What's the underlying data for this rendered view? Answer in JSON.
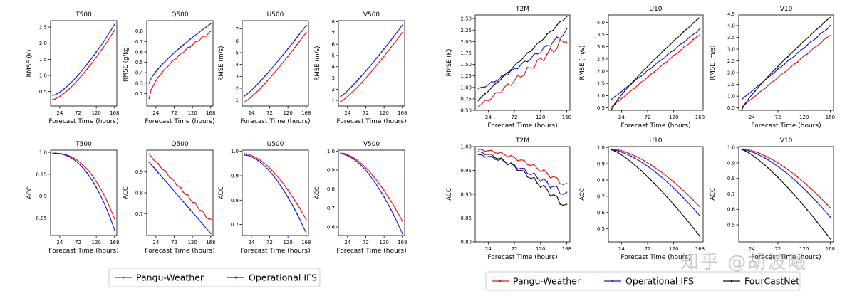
{
  "watermark": "知乎 @胡波曦",
  "colors": {
    "pangu": "#e8141c",
    "ifs": "#1a1adb",
    "fcn": "#111111",
    "axis": "#000000"
  },
  "legend_left": [
    {
      "label": "Pangu-Weather",
      "series": "pangu"
    },
    {
      "label": "Operational IFS",
      "series": "ifs"
    }
  ],
  "legend_right": [
    {
      "label": "Pangu-Weather",
      "series": "pangu"
    },
    {
      "label": "Operational IFS",
      "series": "ifs"
    },
    {
      "label": "FourCastNet",
      "series": "fcn"
    }
  ],
  "chart_data": [
    {
      "type": "line",
      "title": "T500",
      "xlabel": "Forecast Time (hours)",
      "ylabel": "RMSE (K)",
      "x": [
        6,
        168
      ],
      "xticks": [
        24,
        72,
        120,
        168
      ],
      "ylim": [
        0.05,
        2.7
      ],
      "yticks": [
        "0.5",
        "1.0",
        "1.5",
        "2.0",
        "2.5"
      ],
      "series": [
        {
          "name": "Pangu-Weather",
          "key": "pangu",
          "start": 0.25,
          "end": 2.4,
          "shape": 1.4,
          "noise": 0
        },
        {
          "name": "Operational IFS",
          "key": "ifs",
          "start": 0.38,
          "end": 2.58,
          "shape": 1.4,
          "noise": 0
        }
      ]
    },
    {
      "type": "line",
      "title": "Q500",
      "xlabel": "Forecast Time (hours)",
      "ylabel": "RMSE (g/kg)",
      "x": [
        6,
        168
      ],
      "xticks": [
        24,
        72,
        120,
        168
      ],
      "ylim": [
        0.08,
        0.9
      ],
      "yticks": [
        "0.2",
        "0.3",
        "0.4",
        "0.5",
        "0.6",
        "0.7",
        "0.8"
      ],
      "series": [
        {
          "name": "Pangu-Weather",
          "key": "pangu",
          "start": 0.15,
          "end": 0.79,
          "shape": 0.6,
          "noise": 0.008
        },
        {
          "name": "Operational IFS",
          "key": "ifs",
          "start": 0.3,
          "end": 0.87,
          "shape": 0.75,
          "noise": 0
        }
      ]
    },
    {
      "type": "line",
      "title": "U500",
      "xlabel": "Forecast Time (hours)",
      "ylabel": "RMSE (m/s)",
      "x": [
        6,
        168
      ],
      "xticks": [
        24,
        72,
        120,
        168
      ],
      "ylim": [
        0.5,
        7.7
      ],
      "yticks": [
        "1",
        "2",
        "3",
        "4",
        "5",
        "6",
        "7"
      ],
      "series": [
        {
          "name": "Pangu-Weather",
          "key": "pangu",
          "start": 0.85,
          "end": 6.7,
          "shape": 1.2,
          "noise": 0
        },
        {
          "name": "Operational IFS",
          "key": "ifs",
          "start": 1.35,
          "end": 7.3,
          "shape": 1.15,
          "noise": 0
        }
      ]
    },
    {
      "type": "line",
      "title": "V500",
      "xlabel": "Forecast Time (hours)",
      "ylabel": "RMSE (m/s)",
      "x": [
        6,
        168
      ],
      "xticks": [
        24,
        72,
        120,
        168
      ],
      "ylim": [
        0.5,
        8.1
      ],
      "yticks": [
        "1",
        "2",
        "3",
        "4",
        "5",
        "6",
        "7",
        "8"
      ],
      "series": [
        {
          "name": "Pangu-Weather",
          "key": "pangu",
          "start": 0.9,
          "end": 7.05,
          "shape": 1.2,
          "noise": 0
        },
        {
          "name": "Operational IFS",
          "key": "ifs",
          "start": 1.35,
          "end": 7.7,
          "shape": 1.15,
          "noise": 0
        }
      ]
    },
    {
      "type": "line",
      "title": "T500",
      "xlabel": "Forecast Time (hours)",
      "ylabel": "ACC",
      "x": [
        6,
        168
      ],
      "xticks": [
        24,
        72,
        120,
        168
      ],
      "ylim": [
        0.81,
        1.005
      ],
      "yticks": [
        "0.85",
        "0.9",
        "0.95",
        "1.0"
      ],
      "series": [
        {
          "name": "Pangu-Weather",
          "key": "pangu",
          "start": 0.998,
          "end": 0.848,
          "shape": 2.4,
          "noise": 0
        },
        {
          "name": "Operational IFS",
          "key": "ifs",
          "start": 0.998,
          "end": 0.823,
          "shape": 2.3,
          "noise": 0
        }
      ]
    },
    {
      "type": "line",
      "title": "Q500",
      "xlabel": "Forecast Time (hours)",
      "ylabel": "ACC",
      "x": [
        6,
        168
      ],
      "xticks": [
        24,
        72,
        120,
        168
      ],
      "ylim": [
        0.595,
        1.005
      ],
      "yticks": [
        "0.7",
        "0.8",
        "0.9"
      ],
      "series": [
        {
          "name": "Pangu-Weather",
          "key": "pangu",
          "start": 0.985,
          "end": 0.665,
          "shape": 1.0,
          "noise": 0.006
        },
        {
          "name": "Operational IFS",
          "key": "ifs",
          "start": 0.948,
          "end": 0.605,
          "shape": 1.0,
          "noise": 0
        }
      ]
    },
    {
      "type": "line",
      "title": "U500",
      "xlabel": "Forecast Time (hours)",
      "ylabel": "ACC",
      "x": [
        6,
        168
      ],
      "xticks": [
        24,
        72,
        120,
        168
      ],
      "ylim": [
        0.655,
        1.005
      ],
      "yticks": [
        "0.7",
        "0.8",
        "0.9",
        "1.0"
      ],
      "series": [
        {
          "name": "Pangu-Weather",
          "key": "pangu",
          "start": 0.99,
          "end": 0.72,
          "shape": 1.7,
          "noise": 0
        },
        {
          "name": "Operational IFS",
          "key": "ifs",
          "start": 0.985,
          "end": 0.665,
          "shape": 1.75,
          "noise": 0
        }
      ]
    },
    {
      "type": "line",
      "title": "V500",
      "xlabel": "Forecast Time (hours)",
      "ylabel": "ACC",
      "x": [
        6,
        168
      ],
      "xticks": [
        24,
        72,
        120,
        168
      ],
      "ylim": [
        0.555,
        1.005
      ],
      "yticks": [
        "0.6",
        "0.7",
        "0.8",
        "0.9",
        "1.0"
      ],
      "series": [
        {
          "name": "Pangu-Weather",
          "key": "pangu",
          "start": 0.99,
          "end": 0.63,
          "shape": 1.7,
          "noise": 0
        },
        {
          "name": "Operational IFS",
          "key": "ifs",
          "start": 0.985,
          "end": 0.565,
          "shape": 1.75,
          "noise": 0
        }
      ]
    },
    {
      "type": "line",
      "title": "T2M",
      "xlabel": "Forecast Time (hours)",
      "ylabel": "RMSE (K)",
      "x": [
        6,
        168
      ],
      "xticks": [
        24,
        72,
        120,
        168
      ],
      "ylim": [
        0.5,
        2.58
      ],
      "yticks": [
        "0.50",
        "0.75",
        "1.00",
        "1.25",
        "1.50",
        "1.75",
        "2.00",
        "2.25",
        "2.50"
      ],
      "series": [
        {
          "name": "Pangu-Weather",
          "key": "pangu",
          "start": 0.6,
          "end": 2.07,
          "shape": 1.1,
          "noise": 0.07
        },
        {
          "name": "Operational IFS",
          "key": "ifs",
          "start": 0.97,
          "end": 2.22,
          "shape": 1.2,
          "noise": 0.04
        },
        {
          "name": "FourCastNet",
          "key": "fcn",
          "start": 0.72,
          "end": 2.55,
          "shape": 1.0,
          "noise": 0.02
        }
      ]
    },
    {
      "type": "line",
      "title": "U10",
      "xlabel": "Forecast Time (hours)",
      "ylabel": "RMSE (m/s)",
      "x": [
        6,
        168
      ],
      "xticks": [
        24,
        72,
        120,
        168
      ],
      "ylim": [
        0.4,
        4.3
      ],
      "yticks": [
        "0.5",
        "1.0",
        "1.5",
        "2.0",
        "2.5",
        "3.0",
        "3.5",
        "4.0"
      ],
      "series": [
        {
          "name": "Pangu-Weather",
          "key": "pangu",
          "start": 0.55,
          "end": 3.5,
          "shape": 1.0,
          "noise": 0.02
        },
        {
          "name": "Operational IFS",
          "key": "ifs",
          "start": 0.85,
          "end": 3.72,
          "shape": 1.0,
          "noise": 0.02
        },
        {
          "name": "FourCastNet",
          "key": "fcn",
          "start": 0.45,
          "end": 4.2,
          "shape": 0.85,
          "noise": 0.01
        }
      ]
    },
    {
      "type": "line",
      "title": "V10",
      "xlabel": "Forecast Time (hours)",
      "ylabel": "RMSE (m/s)",
      "x": [
        6,
        168
      ],
      "xticks": [
        24,
        72,
        120,
        168
      ],
      "ylim": [
        0.4,
        4.45
      ],
      "yticks": [
        "0.5",
        "1.0",
        "1.5",
        "2.0",
        "2.5",
        "3.0",
        "3.5",
        "4.0",
        "4.5"
      ],
      "series": [
        {
          "name": "Pangu-Weather",
          "key": "pangu",
          "start": 0.55,
          "end": 3.6,
          "shape": 1.0,
          "noise": 0.02
        },
        {
          "name": "Operational IFS",
          "key": "ifs",
          "start": 0.87,
          "end": 3.98,
          "shape": 1.0,
          "noise": 0.02
        },
        {
          "name": "FourCastNet",
          "key": "fcn",
          "start": 0.45,
          "end": 4.35,
          "shape": 0.85,
          "noise": 0.01
        }
      ]
    },
    {
      "type": "line",
      "title": "T2M",
      "xlabel": "Forecast Time (hours)",
      "ylabel": "ACC",
      "x": [
        6,
        168
      ],
      "xticks": [
        24,
        72,
        120,
        168
      ],
      "ylim": [
        0.8,
        1.0
      ],
      "yticks": [
        "0.80",
        "0.85",
        "0.90",
        "0.95",
        "1.00"
      ],
      "series": [
        {
          "name": "Pangu-Weather",
          "key": "pangu",
          "start": 0.993,
          "end": 0.917,
          "shape": 1.7,
          "noise": 0.004
        },
        {
          "name": "Operational IFS",
          "key": "ifs",
          "start": 0.982,
          "end": 0.897,
          "shape": 1.5,
          "noise": 0.005
        },
        {
          "name": "FourCastNet",
          "key": "fcn",
          "start": 0.988,
          "end": 0.872,
          "shape": 1.5,
          "noise": 0.005
        }
      ]
    },
    {
      "type": "line",
      "title": "U10",
      "xlabel": "Forecast Time (hours)",
      "ylabel": "ACC",
      "x": [
        6,
        168
      ],
      "xticks": [
        24,
        72,
        120,
        168
      ],
      "ylim": [
        0.42,
        1.005
      ],
      "yticks": [
        "0.5",
        "0.6",
        "0.7",
        "0.8",
        "0.9",
        "1.0"
      ],
      "series": [
        {
          "name": "Pangu-Weather",
          "key": "pangu",
          "start": 0.99,
          "end": 0.635,
          "shape": 1.6,
          "noise": 0
        },
        {
          "name": "Operational IFS",
          "key": "ifs",
          "start": 0.985,
          "end": 0.58,
          "shape": 1.55,
          "noise": 0
        },
        {
          "name": "FourCastNet",
          "key": "fcn",
          "start": 0.985,
          "end": 0.455,
          "shape": 1.3,
          "noise": 0
        }
      ]
    },
    {
      "type": "line",
      "title": "V10",
      "xlabel": "Forecast Time (hours)",
      "ylabel": "ACC",
      "x": [
        6,
        168
      ],
      "xticks": [
        24,
        72,
        120,
        168
      ],
      "ylim": [
        0.39,
        1.005
      ],
      "yticks": [
        "0.5",
        "0.6",
        "0.7",
        "0.8",
        "0.9",
        "1.0"
      ],
      "series": [
        {
          "name": "Pangu-Weather",
          "key": "pangu",
          "start": 0.99,
          "end": 0.61,
          "shape": 1.6,
          "noise": 0
        },
        {
          "name": "Operational IFS",
          "key": "ifs",
          "start": 0.985,
          "end": 0.55,
          "shape": 1.55,
          "noise": 0
        },
        {
          "name": "FourCastNet",
          "key": "fcn",
          "start": 0.985,
          "end": 0.41,
          "shape": 1.3,
          "noise": 0
        }
      ]
    }
  ]
}
